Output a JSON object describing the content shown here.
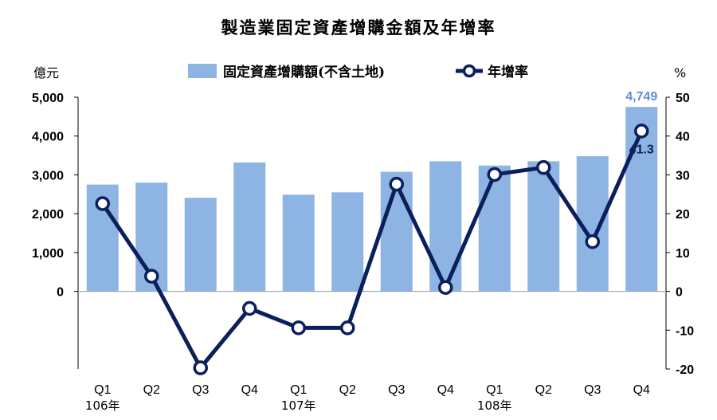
{
  "chart_data": {
    "type": "bar+line",
    "title": "製造業固定資產增購金額及年增率",
    "categories": [
      "Q1",
      "Q2",
      "Q3",
      "Q4",
      "Q1",
      "Q2",
      "Q3",
      "Q4",
      "Q1",
      "Q2",
      "Q3",
      "Q4"
    ],
    "year_labels": [
      {
        "index": 0,
        "label": "106年"
      },
      {
        "index": 4,
        "label": "107年"
      },
      {
        "index": 8,
        "label": "108年"
      }
    ],
    "series": [
      {
        "name": "固定資產增購額(不含土地)",
        "type": "bar",
        "axis": "left",
        "color": "#8db4e2",
        "values": [
          2750,
          2800,
          2410,
          3320,
          2490,
          2550,
          3080,
          3350,
          3240,
          3350,
          3480,
          4749
        ],
        "data_labels": [
          {
            "index": 11,
            "text": "4,749"
          }
        ]
      },
      {
        "name": "年增率",
        "type": "line",
        "axis": "right",
        "color": "#0a1f5c",
        "values": [
          22.6,
          3.9,
          -19.7,
          -4.4,
          -9.4,
          -9.4,
          27.6,
          1.0,
          30.1,
          31.9,
          12.8,
          41.3
        ],
        "data_labels": [
          {
            "index": 11,
            "text": "41.3"
          }
        ]
      }
    ],
    "y_left": {
      "unit_label": "億元",
      "ticks": [
        "5,000",
        "4,000",
        "3,000",
        "2,000",
        "1,000",
        "0"
      ],
      "tick_values": [
        5000,
        4000,
        3000,
        2000,
        1000,
        0
      ],
      "range": [
        -2000,
        5000
      ]
    },
    "y_right": {
      "unit_label": "%",
      "ticks": [
        "50",
        "40",
        "30",
        "20",
        "10",
        "0",
        "-10",
        "-20"
      ],
      "tick_values": [
        50,
        40,
        30,
        20,
        10,
        0,
        -10,
        -20
      ],
      "range": [
        -20,
        50
      ]
    },
    "legend_position": "top"
  }
}
